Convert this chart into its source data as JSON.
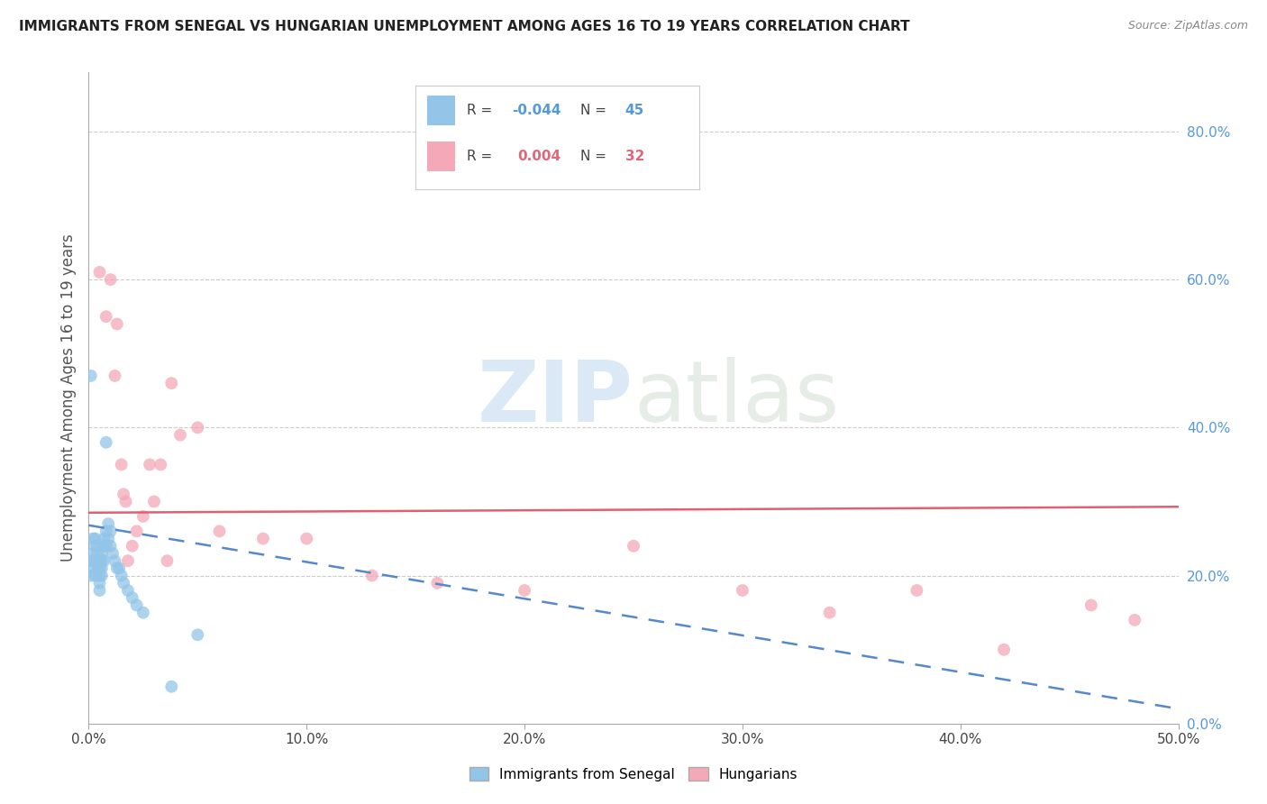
{
  "title": "IMMIGRANTS FROM SENEGAL VS HUNGARIAN UNEMPLOYMENT AMONG AGES 16 TO 19 YEARS CORRELATION CHART",
  "source": "Source: ZipAtlas.com",
  "ylabel": "Unemployment Among Ages 16 to 19 years",
  "xlim": [
    0.0,
    0.5
  ],
  "ylim": [
    0.0,
    0.88
  ],
  "xticks": [
    0.0,
    0.1,
    0.2,
    0.3,
    0.4,
    0.5
  ],
  "xticklabels": [
    "0.0%",
    "10.0%",
    "20.0%",
    "30.0%",
    "40.0%",
    "50.0%"
  ],
  "yticks_right": [
    0.0,
    0.2,
    0.4,
    0.6,
    0.8
  ],
  "yticklabels_right": [
    "0.0%",
    "20.0%",
    "40.0%",
    "60.0%",
    "80.0%"
  ],
  "legend_r_blue": "-0.044",
  "legend_n_blue": "45",
  "legend_r_pink": "0.004",
  "legend_n_pink": "32",
  "blue_color": "#92C5E8",
  "pink_color": "#F4A8B8",
  "blue_line_color": "#5588CC",
  "pink_line_color": "#E06070",
  "watermark_zip": "ZIP",
  "watermark_atlas": "atlas",
  "blue_scatter_x": [
    0.001,
    0.001,
    0.001,
    0.002,
    0.002,
    0.002,
    0.003,
    0.003,
    0.003,
    0.003,
    0.004,
    0.004,
    0.004,
    0.004,
    0.005,
    0.005,
    0.005,
    0.005,
    0.005,
    0.006,
    0.006,
    0.006,
    0.006,
    0.007,
    0.007,
    0.007,
    0.008,
    0.008,
    0.008,
    0.009,
    0.009,
    0.01,
    0.01,
    0.011,
    0.012,
    0.013,
    0.014,
    0.015,
    0.016,
    0.018,
    0.02,
    0.022,
    0.025,
    0.038,
    0.05
  ],
  "blue_scatter_y": [
    0.47,
    0.22,
    0.2,
    0.25,
    0.23,
    0.21,
    0.25,
    0.24,
    0.22,
    0.2,
    0.24,
    0.23,
    0.22,
    0.21,
    0.22,
    0.21,
    0.2,
    0.19,
    0.18,
    0.23,
    0.22,
    0.21,
    0.2,
    0.25,
    0.24,
    0.22,
    0.38,
    0.26,
    0.24,
    0.27,
    0.25,
    0.26,
    0.24,
    0.23,
    0.22,
    0.21,
    0.21,
    0.2,
    0.19,
    0.18,
    0.17,
    0.16,
    0.15,
    0.05,
    0.12
  ],
  "pink_scatter_x": [
    0.005,
    0.008,
    0.01,
    0.012,
    0.013,
    0.015,
    0.016,
    0.017,
    0.018,
    0.02,
    0.022,
    0.025,
    0.028,
    0.03,
    0.033,
    0.036,
    0.038,
    0.042,
    0.05,
    0.06,
    0.08,
    0.1,
    0.13,
    0.16,
    0.2,
    0.25,
    0.3,
    0.34,
    0.38,
    0.42,
    0.46,
    0.48
  ],
  "pink_scatter_y": [
    0.61,
    0.55,
    0.6,
    0.47,
    0.54,
    0.35,
    0.31,
    0.3,
    0.22,
    0.24,
    0.26,
    0.28,
    0.35,
    0.3,
    0.35,
    0.22,
    0.46,
    0.39,
    0.4,
    0.26,
    0.25,
    0.25,
    0.2,
    0.19,
    0.18,
    0.24,
    0.18,
    0.15,
    0.18,
    0.1,
    0.16,
    0.14
  ],
  "blue_trend_x": [
    0.0,
    0.5
  ],
  "blue_trend_y_start": 0.268,
  "blue_trend_y_end": 0.02,
  "pink_trend_x": [
    0.0,
    0.5
  ],
  "pink_trend_y_start": 0.285,
  "pink_trend_y_end": 0.293,
  "background_color": "#FFFFFF",
  "grid_color": "#CCCCCC"
}
